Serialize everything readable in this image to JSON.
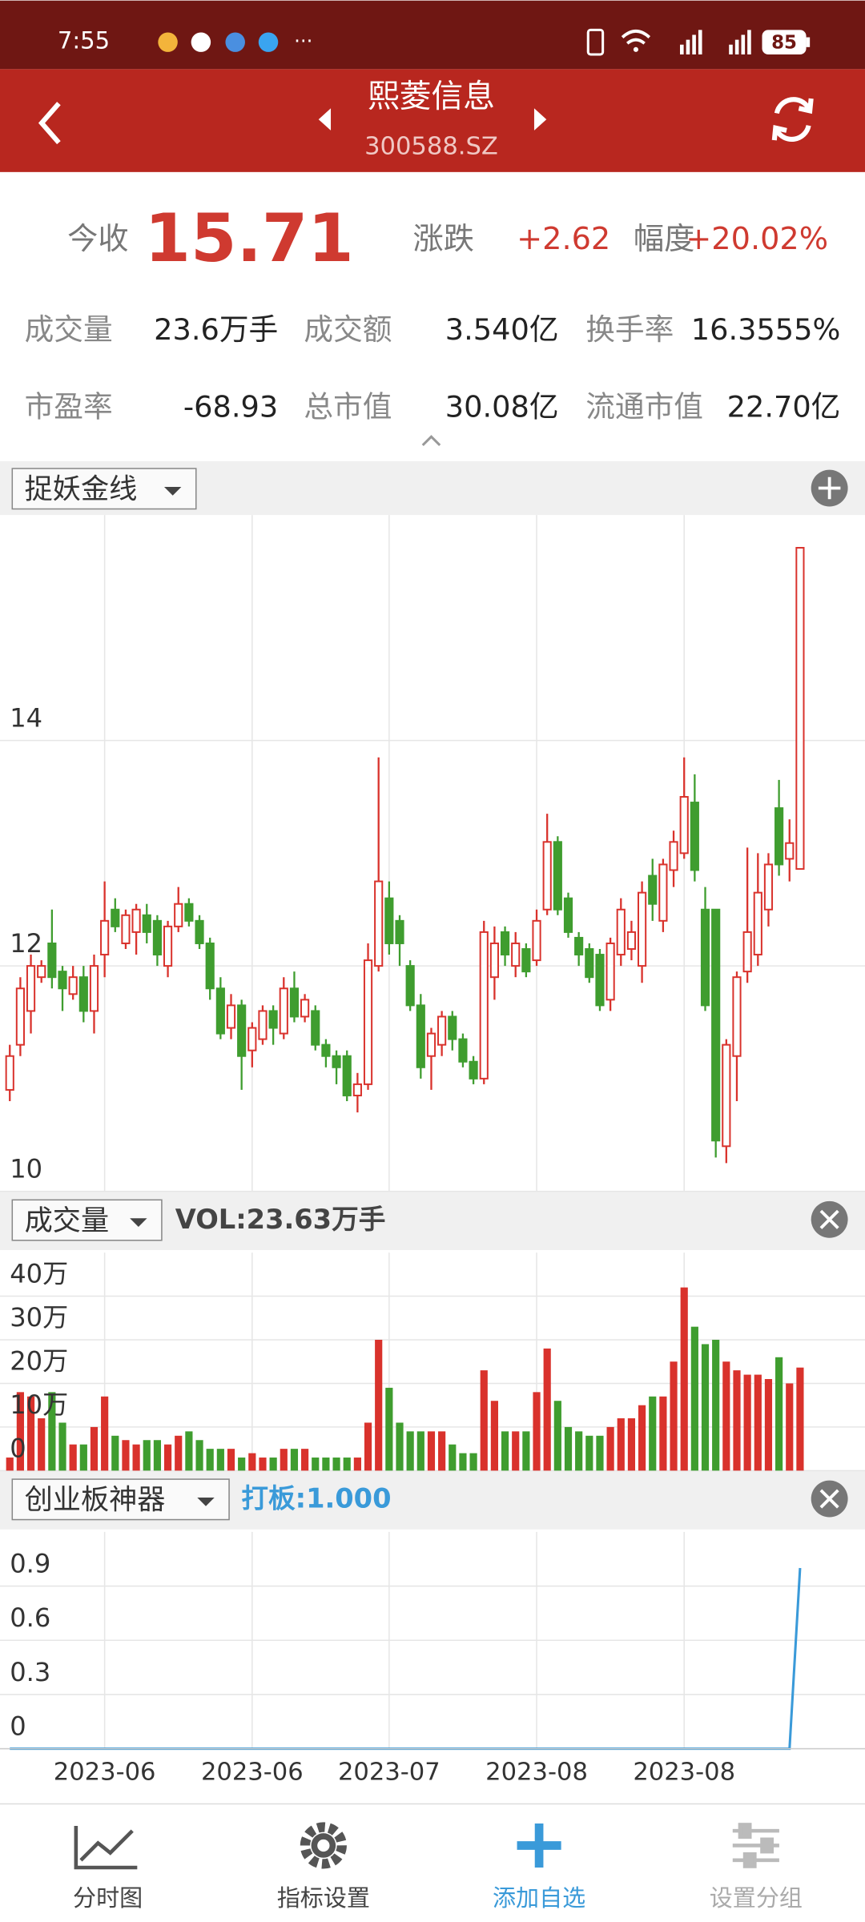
{
  "status_bar": {
    "time": "7:55",
    "battery": "85"
  },
  "header": {
    "title": "熙菱信息",
    "code": "300588.SZ"
  },
  "quote": {
    "close_label": "今收",
    "close": "15.71",
    "change_label": "涨跌",
    "change": "+2.62",
    "pct_label": "幅度",
    "pct": "+20.02%",
    "rows": [
      [
        {
          "label": "成交量",
          "value": "23.6万手"
        },
        {
          "label": "成交额",
          "value": "3.540亿"
        },
        {
          "label": "换手率",
          "value": "16.3555%"
        }
      ],
      [
        {
          "label": "市盈率",
          "value": "-68.93"
        },
        {
          "label": "总市值",
          "value": "30.08亿"
        },
        {
          "label": "流通市值",
          "value": "22.70亿"
        }
      ]
    ]
  },
  "chart_data": [
    {
      "type": "candlestick",
      "indicator": "捉妖金线",
      "up_color": "#d9322c",
      "down_color": "#3f9d2f",
      "ylim": [
        10,
        16
      ],
      "yticks": [
        10,
        12,
        14
      ],
      "grid": true,
      "open": [
        10.9,
        11.3,
        11.6,
        11.9,
        12.2,
        11.95,
        11.75,
        11.9,
        11.6,
        12.1,
        12.5,
        12.2,
        12.3,
        12.45,
        12.4,
        12.0,
        12.35,
        12.55,
        12.4,
        12.2,
        11.8,
        11.45,
        11.65,
        11.25,
        11.35,
        11.6,
        11.4,
        11.8,
        11.55,
        11.6,
        11.3,
        11.2,
        11.2,
        10.85,
        10.95,
        12.0,
        12.6,
        12.4,
        12.0,
        11.65,
        11.2,
        11.3,
        11.55,
        11.35,
        11.15,
        11.0,
        11.9,
        12.3,
        12.0,
        12.15,
        12.05,
        12.5,
        13.1,
        12.6,
        12.25,
        12.15,
        12.1,
        11.7,
        12.1,
        12.15,
        12.0,
        12.8,
        12.4,
        12.85,
        13.0,
        13.45,
        12.5,
        12.5,
        10.4,
        11.2,
        11.95,
        12.1,
        12.5,
        13.4,
        12.95,
        12.86
      ],
      "high": [
        11.3,
        11.9,
        12.1,
        12.05,
        12.5,
        12.0,
        12.0,
        12.0,
        12.1,
        12.75,
        12.6,
        12.5,
        12.55,
        12.55,
        12.45,
        12.4,
        12.7,
        12.6,
        12.45,
        12.25,
        11.9,
        11.75,
        11.7,
        11.5,
        11.65,
        11.65,
        11.9,
        11.95,
        11.75,
        11.65,
        11.35,
        11.25,
        11.25,
        11.05,
        12.2,
        13.85,
        12.75,
        12.45,
        12.05,
        11.75,
        11.45,
        11.6,
        11.6,
        11.4,
        11.2,
        12.4,
        12.35,
        12.35,
        12.3,
        12.2,
        12.5,
        13.35,
        13.15,
        12.65,
        12.3,
        12.2,
        12.15,
        12.25,
        12.6,
        12.4,
        12.75,
        12.95,
        12.95,
        13.2,
        13.85,
        13.7,
        12.7,
        12.5,
        11.35,
        11.95,
        13.05,
        13.0,
        13.0,
        13.65,
        13.3,
        15.71
      ],
      "low": [
        10.8,
        11.2,
        11.4,
        11.85,
        11.8,
        11.6,
        11.7,
        11.5,
        11.4,
        11.9,
        12.3,
        12.15,
        12.1,
        12.2,
        12.0,
        11.9,
        12.3,
        12.35,
        12.15,
        11.7,
        11.35,
        11.35,
        10.9,
        11.1,
        11.3,
        11.3,
        11.35,
        11.5,
        11.5,
        11.25,
        11.1,
        10.95,
        10.8,
        10.7,
        10.9,
        11.95,
        12.1,
        12.0,
        11.6,
        11.0,
        10.9,
        11.2,
        11.25,
        11.1,
        10.95,
        10.95,
        11.7,
        12.0,
        11.9,
        11.9,
        12.0,
        12.45,
        12.45,
        12.25,
        12.0,
        11.85,
        11.6,
        11.6,
        12.0,
        12.05,
        11.85,
        12.4,
        12.3,
        12.7,
        12.95,
        12.75,
        11.6,
        10.3,
        10.25,
        10.8,
        11.85,
        12.0,
        12.35,
        12.8,
        12.75,
        12.86
      ],
      "close": [
        11.2,
        11.8,
        12.0,
        12.0,
        11.9,
        11.8,
        11.9,
        11.6,
        12.0,
        12.4,
        12.35,
        12.45,
        12.5,
        12.3,
        12.1,
        12.35,
        12.55,
        12.4,
        12.2,
        11.8,
        11.4,
        11.65,
        11.2,
        11.45,
        11.6,
        11.45,
        11.8,
        11.55,
        11.7,
        11.3,
        11.2,
        11.1,
        10.85,
        10.95,
        12.05,
        12.75,
        12.2,
        12.2,
        11.65,
        11.1,
        11.4,
        11.55,
        11.35,
        11.15,
        11.0,
        12.3,
        12.2,
        12.1,
        12.2,
        11.95,
        12.4,
        13.1,
        12.5,
        12.3,
        12.1,
        11.9,
        11.65,
        12.2,
        12.5,
        12.3,
        12.65,
        12.55,
        12.9,
        13.1,
        13.5,
        12.85,
        11.65,
        10.45,
        11.3,
        11.9,
        12.3,
        12.65,
        12.9,
        12.9,
        13.09,
        15.71
      ]
    },
    {
      "type": "bar",
      "indicator": "成交量",
      "readout": "VOL:23.63万手",
      "ylim": [
        0,
        50
      ],
      "yticks": [
        {
          "value": 0,
          "label": "0"
        },
        {
          "value": 10,
          "label": "10万"
        },
        {
          "value": 20,
          "label": "20万"
        },
        {
          "value": 30,
          "label": "30万"
        },
        {
          "value": 40,
          "label": "40万"
        }
      ],
      "grid": true,
      "values": [
        3,
        18,
        17,
        12,
        18,
        11,
        6,
        6,
        10,
        17,
        8,
        7,
        6,
        7,
        7,
        6,
        8,
        9,
        7,
        5,
        5,
        5,
        3,
        4,
        3,
        3,
        5,
        5,
        5,
        3,
        3,
        3,
        3,
        3,
        11,
        30,
        19,
        11,
        9,
        9,
        9,
        9,
        6,
        4,
        4,
        23,
        16,
        9,
        9,
        9,
        18,
        28,
        16,
        10,
        9,
        8,
        8,
        10,
        12,
        12,
        15,
        17,
        17,
        25,
        42,
        33,
        29,
        30,
        25,
        23,
        22,
        22,
        21,
        26,
        20,
        23.63
      ]
    },
    {
      "type": "line",
      "indicator": "创业板神器",
      "readout": "打板:1.000",
      "color": "#3a9ad9",
      "ylim": [
        0,
        1.2
      ],
      "yticks": [
        0,
        0.3,
        0.6,
        0.9
      ],
      "grid": true,
      "categories": [
        null,
        null,
        null,
        null,
        null,
        null,
        null,
        null,
        null,
        "2023-06",
        null,
        null,
        null,
        null,
        null,
        null,
        null,
        null,
        null,
        null,
        null,
        null,
        null,
        "2023-06",
        null,
        null,
        null,
        null,
        null,
        null,
        null,
        null,
        null,
        null,
        null,
        null,
        "2023-07",
        null,
        null,
        null,
        null,
        null,
        null,
        null,
        null,
        null,
        null,
        null,
        null,
        null,
        "2023-08",
        null,
        null,
        null,
        null,
        null,
        null,
        null,
        null,
        null,
        null,
        null,
        null,
        null,
        "2023-08",
        null,
        null,
        null,
        null,
        null,
        null,
        null,
        null,
        null,
        null,
        null
      ],
      "values": [
        0,
        0,
        0,
        0,
        0,
        0,
        0,
        0,
        0,
        0,
        0,
        0,
        0,
        0,
        0,
        0,
        0,
        0,
        0,
        0,
        0,
        0,
        0,
        0,
        0,
        0,
        0,
        0,
        0,
        0,
        0,
        0,
        0,
        0,
        0,
        0,
        0,
        0,
        0,
        0,
        0,
        0,
        0,
        0,
        0,
        0,
        0,
        0,
        0,
        0,
        0,
        0,
        0,
        0,
        0,
        0,
        0,
        0,
        0,
        0,
        0,
        0,
        0,
        0,
        0,
        0,
        0,
        0,
        0,
        0,
        0,
        0,
        0,
        0,
        0,
        1.0
      ]
    }
  ],
  "nav": [
    "分时图",
    "指标设置",
    "添加自选",
    "设置分组"
  ]
}
